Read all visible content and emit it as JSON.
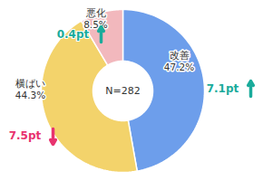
{
  "chart_data": {
    "type": "pie",
    "donut": true,
    "center_label": "N=282",
    "categories": [
      "改善",
      "横ばい",
      "悪化"
    ],
    "values": [
      47.2,
      44.3,
      8.5
    ],
    "value_labels": [
      "47.2%",
      "44.3%",
      "8.5%"
    ],
    "data_labels": true,
    "colors": [
      "#6d9eeb",
      "#f3d36b",
      "#f2b8bd"
    ],
    "changes": [
      {
        "category": "改善",
        "value": 7.1,
        "label": "7.1pt",
        "direction": "up",
        "color": "#1aab9b"
      },
      {
        "category": "横ばい",
        "value": 7.5,
        "label": "7.5pt",
        "direction": "down",
        "color": "#e8336e"
      },
      {
        "category": "悪化",
        "value": 0.4,
        "label": "0.4pt",
        "direction": "up",
        "color": "#1aab9b"
      }
    ]
  }
}
